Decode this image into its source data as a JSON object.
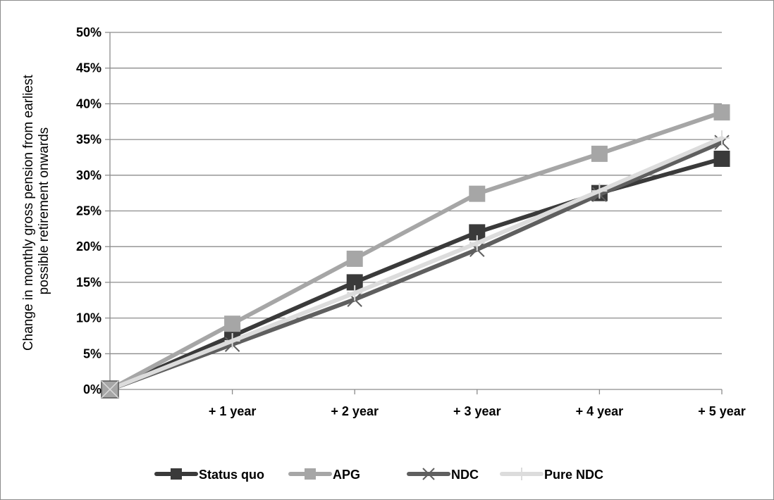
{
  "chart_data": {
    "type": "line",
    "title": "",
    "xlabel": "",
    "ylabel_lines": [
      "Change in monthly gross pension from earliest",
      "possible retirement onwards"
    ],
    "categories": [
      "",
      "+ 1 year",
      "+ 2 year",
      "+ 3 year",
      "+ 4 year",
      "+ 5 year"
    ],
    "yticks": [
      "0%",
      "5%",
      "10%",
      "15%",
      "20%",
      "25%",
      "30%",
      "35%",
      "40%",
      "45%",
      "50%"
    ],
    "ylim": [
      0,
      50
    ],
    "grid": true,
    "legend_position": "bottom",
    "series": [
      {
        "name": "Status quo",
        "color": "#3a3a3a",
        "marker": "square",
        "values": [
          0,
          7.5,
          15.0,
          22.0,
          27.5,
          32.3
        ]
      },
      {
        "name": "APG",
        "color": "#a6a6a6",
        "marker": "square",
        "values": [
          0,
          9.2,
          18.3,
          27.4,
          33.0,
          38.8
        ]
      },
      {
        "name": "NDC",
        "color": "#5f5f5f",
        "marker": "x",
        "values": [
          0,
          6.3,
          12.6,
          19.6,
          27.3,
          34.6
        ]
      },
      {
        "name": "Pure NDC",
        "color": "#dcdcdc",
        "marker": "plus",
        "values": [
          0,
          6.8,
          13.5,
          20.5,
          27.8,
          35.2
        ]
      }
    ]
  }
}
